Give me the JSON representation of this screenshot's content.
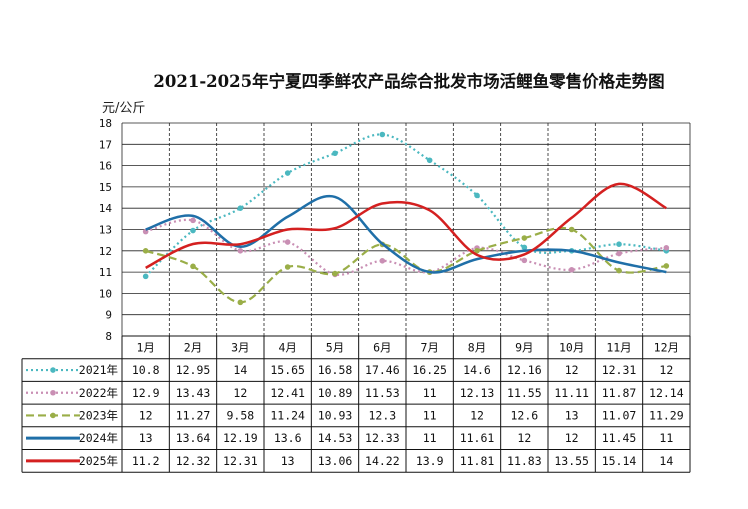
{
  "chart_data": {
    "type": "line",
    "title": "2021-2025年宁夏四季鲜农产品综合批发市场活鲤鱼零售价格走势图",
    "ylabel": "元/公斤",
    "xlabel": "",
    "ylim": [
      8,
      18
    ],
    "yticks": [
      "8",
      "9",
      "10",
      "11",
      "12",
      "13",
      "14",
      "15",
      "16",
      "17",
      "18"
    ],
    "grid": true,
    "legend": "table-bottom",
    "categories": [
      "1月",
      "2月",
      "3月",
      "4月",
      "5月",
      "6月",
      "7月",
      "8月",
      "9月",
      "10月",
      "11月",
      "12月"
    ],
    "series": [
      {
        "name": "2021年",
        "color": "#4bb8c0",
        "style": "dotted",
        "values": [
          10.8,
          12.95,
          14,
          15.65,
          16.58,
          17.46,
          16.25,
          14.6,
          12.16,
          12,
          12.31,
          12
        ]
      },
      {
        "name": "2022年",
        "color": "#c98fb4",
        "style": "dotted",
        "values": [
          12.9,
          13.43,
          12,
          12.41,
          10.89,
          11.53,
          11,
          12.13,
          11.55,
          11.11,
          11.87,
          12.14
        ]
      },
      {
        "name": "2023年",
        "color": "#9aae48",
        "style": "dashed",
        "values": [
          12,
          11.27,
          9.58,
          11.24,
          10.93,
          12.3,
          11,
          12,
          12.6,
          13,
          11.07,
          11.29
        ]
      },
      {
        "name": "2024年",
        "color": "#1f6fa8",
        "style": "solid",
        "values": [
          13,
          13.64,
          12.19,
          13.6,
          14.53,
          12.33,
          11,
          11.61,
          12,
          12,
          11.45,
          11
        ]
      },
      {
        "name": "2025年",
        "color": "#d42020",
        "style": "solid",
        "values": [
          11.2,
          12.32,
          12.31,
          13,
          13.06,
          14.22,
          13.9,
          11.81,
          11.83,
          13.55,
          15.14,
          14
        ]
      }
    ]
  }
}
